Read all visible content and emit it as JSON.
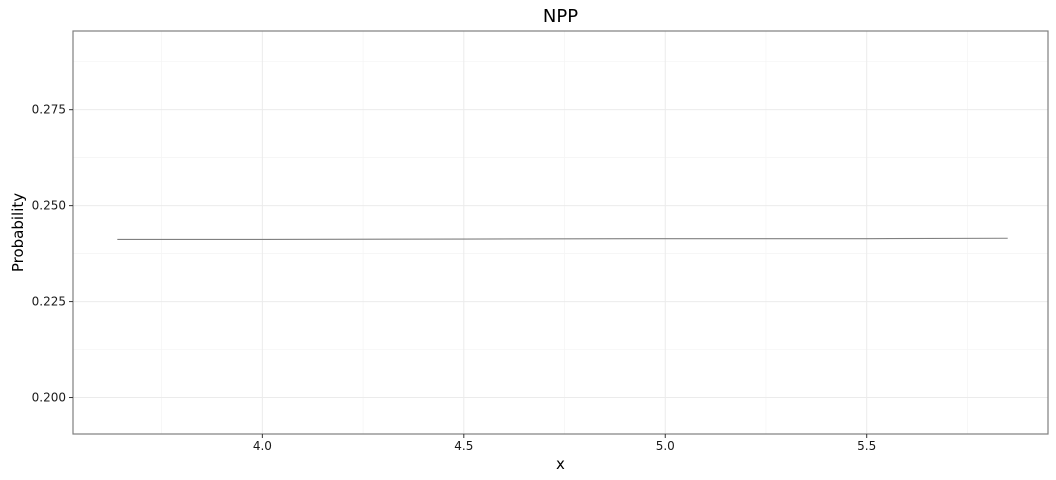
{
  "chart_data": {
    "type": "line",
    "title": "NPP",
    "xlabel": "x",
    "ylabel": "Probability",
    "xlim": [
      3.53,
      5.95
    ],
    "ylim": [
      0.1905,
      0.2955
    ],
    "x_ticks": [
      4.0,
      4.5,
      5.0,
      5.5
    ],
    "x_tick_labels": [
      "4.0",
      "4.5",
      "5.0",
      "5.5"
    ],
    "x_minor_ticks": [
      3.75,
      4.25,
      4.75,
      5.25,
      5.75
    ],
    "y_ticks": [
      0.2,
      0.225,
      0.25,
      0.275
    ],
    "y_tick_labels": [
      "0.200",
      "0.225",
      "0.250",
      "0.275"
    ],
    "y_minor_ticks": [
      0.2125,
      0.2375,
      0.2625,
      0.2875
    ],
    "grid": true,
    "series": [
      {
        "color": "#808080",
        "x": [
          3.64,
          4.0,
          4.5,
          5.0,
          5.5,
          5.85
        ],
        "values": [
          0.2412,
          0.2412,
          0.2413,
          0.2414,
          0.2414,
          0.2415
        ]
      }
    ]
  }
}
